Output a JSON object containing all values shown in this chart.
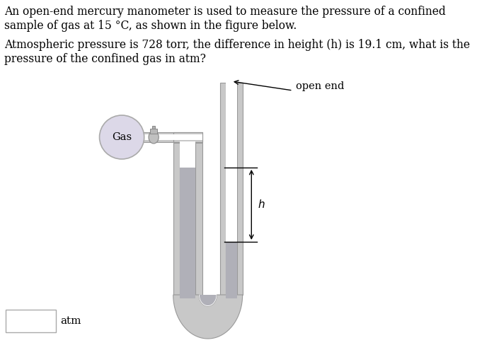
{
  "title_line1": "An open-end mercury manometer is used to measure the pressure of a confined",
  "title_line2": "sample of gas at 15 °C, as shown in the figure below.",
  "question_line1": "Atmospheric pressure is 728 torr, the difference in height (h) is 19.1 cm, what is the",
  "question_line2": "pressure of the confined gas in atm?",
  "label_gas": "Gas",
  "label_open_end": "open end",
  "label_h": "h",
  "label_atm": "atm",
  "bg_color": "#ffffff",
  "tube_fill": "#c8c8c8",
  "tube_edge": "#999999",
  "tube_inner_fill": "#d8d8d8",
  "ellipse_fill": "#dcd8e8",
  "ellipse_edge": "#aaaaaa",
  "mercury_fill": "#b0b0b8",
  "text_color": "#000000",
  "box_edge": "#aaaaaa",
  "font_size_body": 11.2,
  "font_size_label": 11
}
